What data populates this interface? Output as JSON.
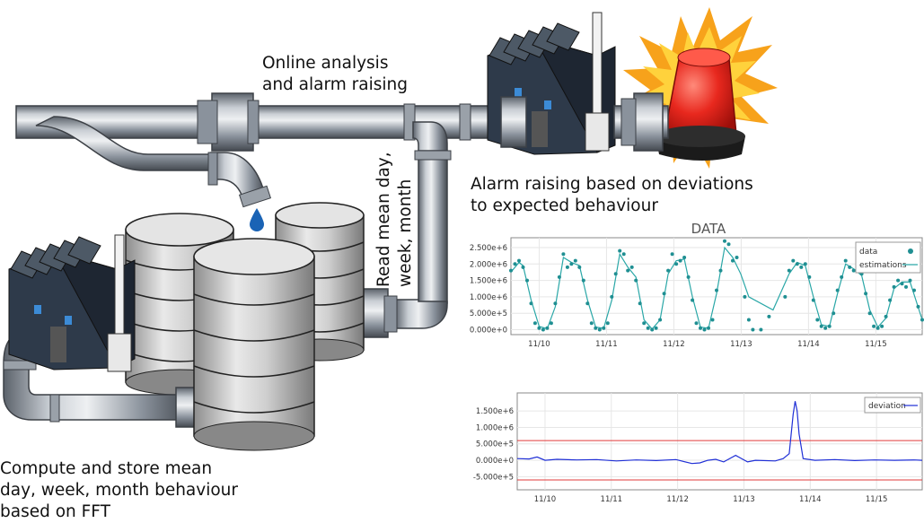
{
  "captions": {
    "online": [
      "Online analysis",
      "and alarm raising"
    ],
    "alarm": [
      "Alarm raising based on deviations",
      "to expected behaviour"
    ],
    "compute": [
      "Compute and store mean",
      "day, week, month behaviour",
      "based on FFT"
    ],
    "read": [
      "Read mean day,",
      "week, month"
    ]
  },
  "colors": {
    "pipe": "#8a929c",
    "pipe_light": "#c9ced4",
    "pipe_dark": "#555b63",
    "drop": "#1a63b5",
    "siren": "#e8281e",
    "data_line": "#2aa7a7",
    "deviation_line": "#1f2fd6",
    "threshold": "#e23a3a"
  },
  "chart_data": [
    {
      "type": "line",
      "title": "DATA",
      "xlabel": "",
      "ylabel": "",
      "x_ticks": [
        "11/10",
        "11/11",
        "11/12",
        "11/13",
        "11/14",
        "11/15"
      ],
      "y_ticks": [
        "0.000e+0",
        "5.000e+5",
        "1.000e+6",
        "1.500e+6",
        "2.000e+6",
        "2.500e+6"
      ],
      "ylim": [
        -150000,
        2800000
      ],
      "legend": {
        "position": "top-right",
        "entries": [
          "data",
          "estimations"
        ]
      },
      "grid": true,
      "series": [
        {
          "name": "data",
          "points": [
            [
              0,
              1800000
            ],
            [
              0.1,
              2000000
            ],
            [
              0.2,
              2100000
            ],
            [
              0.3,
              1900000
            ],
            [
              0.4,
              1500000
            ],
            [
              0.5,
              800000
            ],
            [
              0.6,
              200000
            ],
            [
              0.7,
              50000
            ],
            [
              0.8,
              0
            ],
            [
              0.9,
              50000
            ],
            [
              1.0,
              200000
            ],
            [
              1.1,
              800000
            ],
            [
              1.2,
              1600000
            ],
            [
              1.3,
              2300000
            ],
            [
              1.4,
              1900000
            ],
            [
              1.5,
              2000000
            ],
            [
              1.6,
              2100000
            ],
            [
              1.7,
              1900000
            ],
            [
              1.8,
              1500000
            ],
            [
              1.9,
              800000
            ],
            [
              2.0,
              200000
            ],
            [
              2.1,
              50000
            ],
            [
              2.2,
              0
            ],
            [
              2.3,
              50000
            ],
            [
              2.4,
              200000
            ],
            [
              2.5,
              1000000
            ],
            [
              2.6,
              1700000
            ],
            [
              2.7,
              2400000
            ],
            [
              2.8,
              2300000
            ],
            [
              2.9,
              1800000
            ],
            [
              3.0,
              1900000
            ],
            [
              3.1,
              1500000
            ],
            [
              3.2,
              800000
            ],
            [
              3.3,
              200000
            ],
            [
              3.4,
              50000
            ],
            [
              3.5,
              0
            ],
            [
              3.6,
              50000
            ],
            [
              3.7,
              300000
            ],
            [
              3.8,
              1100000
            ],
            [
              3.9,
              1800000
            ],
            [
              4.0,
              2300000
            ],
            [
              4.1,
              2000000
            ],
            [
              4.2,
              2100000
            ],
            [
              4.3,
              2200000
            ],
            [
              4.4,
              1600000
            ],
            [
              4.5,
              900000
            ],
            [
              4.6,
              200000
            ],
            [
              4.7,
              50000
            ],
            [
              4.8,
              0
            ],
            [
              4.9,
              50000
            ],
            [
              5.0,
              300000
            ],
            [
              5.1,
              1200000
            ],
            [
              5.2,
              1800000
            ],
            [
              5.3,
              2700000
            ],
            [
              5.4,
              2600000
            ],
            [
              5.5,
              2100000
            ],
            [
              5.6,
              2200000
            ],
            [
              5.8,
              1000000
            ],
            [
              5.9,
              300000
            ],
            [
              6.0,
              0
            ],
            [
              6.2,
              0
            ],
            [
              6.4,
              400000
            ],
            [
              6.8,
              1000000
            ],
            [
              6.9,
              1800000
            ],
            [
              7.0,
              2100000
            ],
            [
              7.1,
              2000000
            ],
            [
              7.2,
              1900000
            ],
            [
              7.3,
              2000000
            ],
            [
              7.4,
              1600000
            ],
            [
              7.5,
              900000
            ],
            [
              7.6,
              300000
            ],
            [
              7.7,
              100000
            ],
            [
              7.8,
              50000
            ],
            [
              7.9,
              100000
            ],
            [
              8.0,
              500000
            ],
            [
              8.1,
              1200000
            ],
            [
              8.2,
              1600000
            ],
            [
              8.3,
              2100000
            ],
            [
              8.4,
              1900000
            ],
            [
              8.5,
              1800000
            ],
            [
              8.6,
              2000000
            ],
            [
              8.7,
              1700000
            ],
            [
              8.8,
              1100000
            ],
            [
              8.9,
              500000
            ],
            [
              9.0,
              100000
            ],
            [
              9.1,
              50000
            ],
            [
              9.2,
              100000
            ],
            [
              9.3,
              400000
            ],
            [
              9.4,
              900000
            ],
            [
              9.5,
              1300000
            ],
            [
              9.6,
              1500000
            ],
            [
              9.7,
              1400000
            ],
            [
              9.8,
              1300000
            ],
            [
              9.9,
              1500000
            ],
            [
              10.0,
              1200000
            ],
            [
              10.1,
              700000
            ],
            [
              10.2,
              300000
            ]
          ]
        },
        {
          "name": "estimations",
          "points": [
            [
              0,
              1750000
            ],
            [
              0.2,
              2050000
            ],
            [
              0.3,
              1950000
            ],
            [
              0.5,
              900000
            ],
            [
              0.7,
              100000
            ],
            [
              0.9,
              30000
            ],
            [
              1.1,
              700000
            ],
            [
              1.3,
              2200000
            ],
            [
              1.5,
              2050000
            ],
            [
              1.7,
              1950000
            ],
            [
              1.9,
              900000
            ],
            [
              2.1,
              80000
            ],
            [
              2.3,
              40000
            ],
            [
              2.5,
              900000
            ],
            [
              2.7,
              2300000
            ],
            [
              2.9,
              1900000
            ],
            [
              3.1,
              1600000
            ],
            [
              3.3,
              300000
            ],
            [
              3.5,
              20000
            ],
            [
              3.7,
              300000
            ],
            [
              3.9,
              1700000
            ],
            [
              4.1,
              2100000
            ],
            [
              4.3,
              2150000
            ],
            [
              4.5,
              1000000
            ],
            [
              4.7,
              80000
            ],
            [
              4.9,
              40000
            ],
            [
              5.1,
              1100000
            ],
            [
              5.3,
              2500000
            ],
            [
              5.5,
              2200000
            ],
            [
              5.7,
              1700000
            ],
            [
              5.9,
              1000000
            ],
            [
              6.5,
              600000
            ],
            [
              6.9,
              1700000
            ],
            [
              7.1,
              2050000
            ],
            [
              7.3,
              1950000
            ],
            [
              7.5,
              1000000
            ],
            [
              7.7,
              150000
            ],
            [
              7.9,
              100000
            ],
            [
              8.1,
              1100000
            ],
            [
              8.3,
              2000000
            ],
            [
              8.5,
              1850000
            ],
            [
              8.7,
              1650000
            ],
            [
              8.9,
              600000
            ],
            [
              9.1,
              80000
            ],
            [
              9.3,
              350000
            ],
            [
              9.5,
              1250000
            ],
            [
              9.7,
              1450000
            ],
            [
              9.9,
              1450000
            ],
            [
              10.2,
              300000
            ]
          ]
        }
      ]
    },
    {
      "type": "line",
      "title": "",
      "xlabel": "",
      "ylabel": "",
      "x_ticks": [
        "11/10",
        "11/11",
        "11/12",
        "11/13",
        "11/14",
        "11/15"
      ],
      "y_ticks": [
        "-5.000e+5",
        "0.000e+0",
        "5.000e+5",
        "1.000e+6",
        "1.500e+6"
      ],
      "ylim": [
        -900000,
        2050000
      ],
      "thresholds": [
        600000,
        -600000
      ],
      "legend": {
        "position": "top-right",
        "entries": [
          "deviation"
        ]
      },
      "grid": true,
      "series": [
        {
          "name": "deviation",
          "points": [
            [
              0,
              50000
            ],
            [
              0.3,
              40000
            ],
            [
              0.5,
              100000
            ],
            [
              0.7,
              0
            ],
            [
              1.0,
              30000
            ],
            [
              1.5,
              10000
            ],
            [
              2.0,
              20000
            ],
            [
              2.5,
              -20000
            ],
            [
              3.0,
              10000
            ],
            [
              3.5,
              -10000
            ],
            [
              4.0,
              20000
            ],
            [
              4.4,
              -100000
            ],
            [
              4.6,
              -80000
            ],
            [
              4.8,
              0
            ],
            [
              5.0,
              30000
            ],
            [
              5.2,
              -50000
            ],
            [
              5.5,
              150000
            ],
            [
              5.8,
              -50000
            ],
            [
              6.0,
              0
            ],
            [
              6.5,
              -20000
            ],
            [
              6.7,
              50000
            ],
            [
              6.85,
              200000
            ],
            [
              6.95,
              1400000
            ],
            [
              7.0,
              1800000
            ],
            [
              7.05,
              1500000
            ],
            [
              7.1,
              800000
            ],
            [
              7.2,
              50000
            ],
            [
              7.5,
              0
            ],
            [
              8.0,
              20000
            ],
            [
              8.5,
              -10000
            ],
            [
              9.0,
              10000
            ],
            [
              9.5,
              0
            ],
            [
              10.0,
              10000
            ],
            [
              10.2,
              0
            ]
          ]
        }
      ]
    }
  ]
}
